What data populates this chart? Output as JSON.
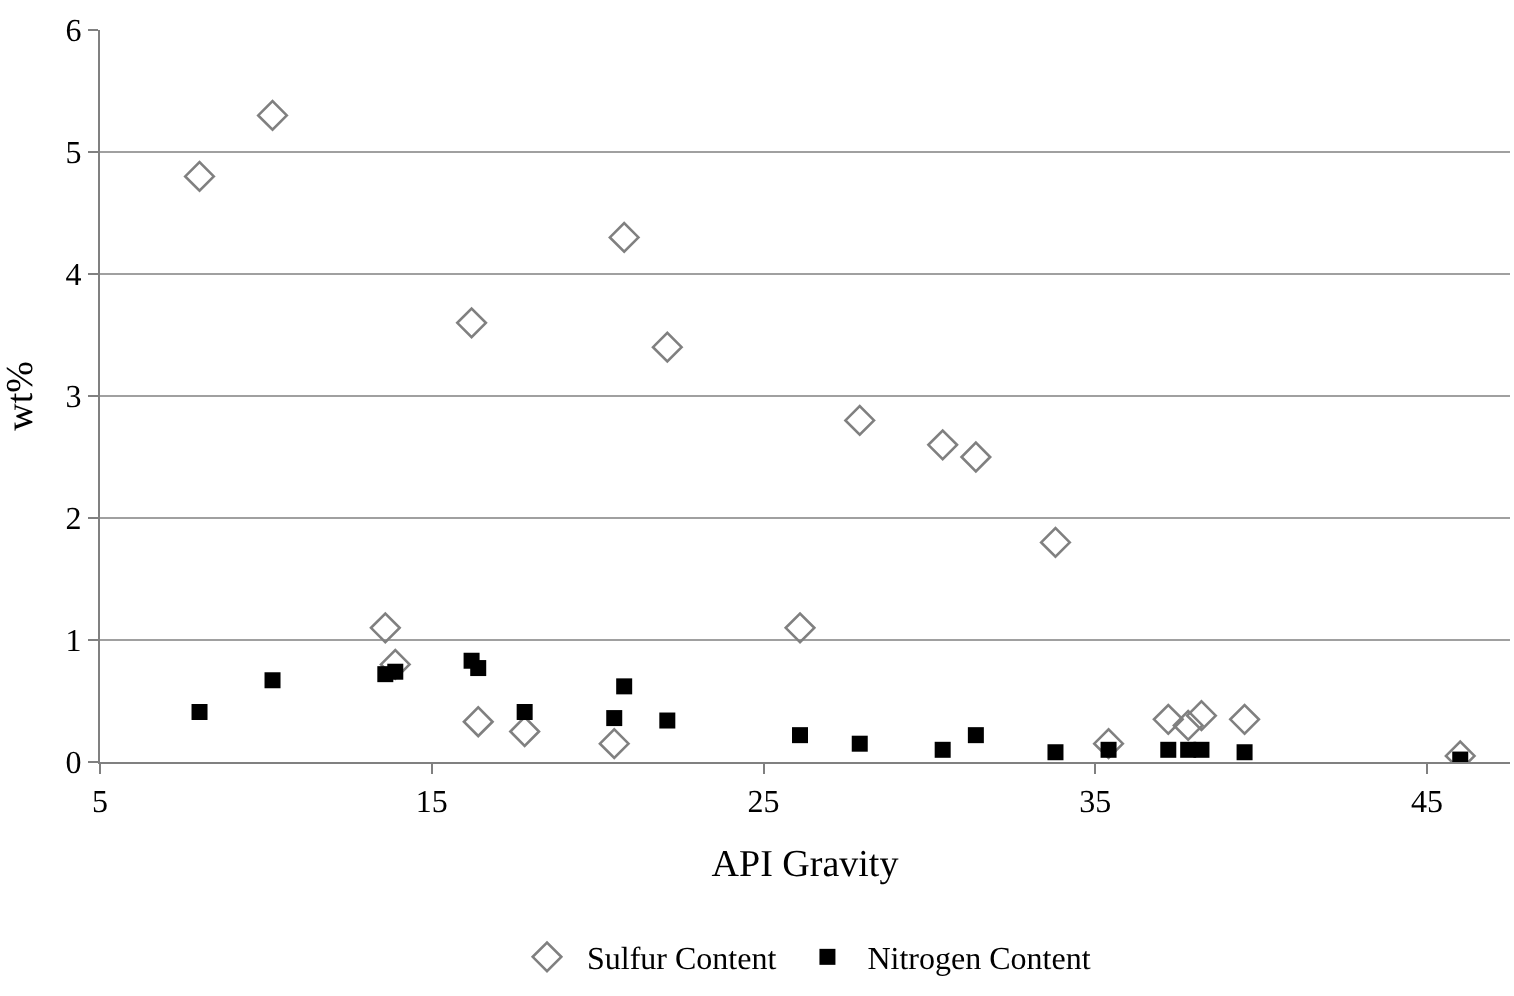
{
  "chart_data": {
    "type": "scatter",
    "xlabel": "API Gravity",
    "ylabel": "wt%",
    "xlim": [
      5,
      47.5
    ],
    "xticks": [
      5,
      15,
      25,
      35,
      45
    ],
    "ylim": [
      0,
      6
    ],
    "yticks": [
      0,
      1,
      2,
      3,
      4,
      5,
      6
    ],
    "grid": "y",
    "legend": "bottom",
    "series": [
      {
        "name": "Sulfur Content",
        "color": "#808080",
        "marker": "diamond",
        "x": [
          8,
          10.2,
          13.6,
          13.9,
          16.2,
          16.4,
          17.8,
          20.5,
          20.8,
          22.1,
          26.1,
          27.9,
          30.4,
          31.4,
          33.8,
          35.4,
          37.2,
          37.8,
          38.2,
          39.5,
          46
        ],
        "values": [
          4.8,
          5.3,
          1.1,
          0.8,
          3.6,
          0.33,
          0.25,
          0.15,
          4.3,
          3.4,
          1.1,
          2.8,
          2.6,
          2.5,
          1.8,
          0.15,
          0.35,
          0.3,
          0.38,
          0.35,
          0.05
        ]
      },
      {
        "name": "Nitrogen Content",
        "color": "#000000",
        "marker": "square",
        "x": [
          8,
          10.2,
          13.6,
          13.9,
          16.2,
          16.4,
          17.8,
          20.5,
          20.8,
          22.1,
          26.1,
          27.9,
          30.4,
          31.4,
          33.8,
          35.4,
          37.2,
          37.8,
          38.2,
          39.5,
          46
        ],
        "values": [
          0.41,
          0.67,
          0.72,
          0.74,
          0.83,
          0.77,
          0.41,
          0.36,
          0.62,
          0.34,
          0.22,
          0.15,
          0.1,
          0.22,
          0.08,
          0.1,
          0.1,
          0.1,
          0.1,
          0.08,
          0.02
        ]
      }
    ]
  }
}
